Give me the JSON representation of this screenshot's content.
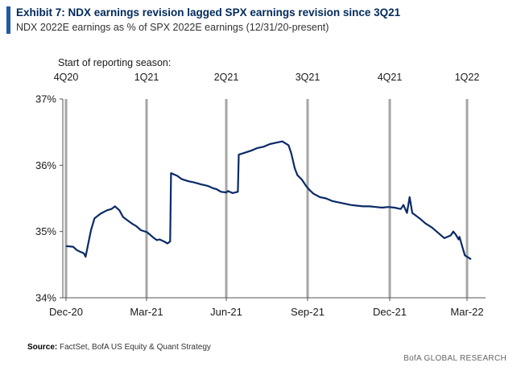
{
  "header": {
    "title": "Exhibit 7: NDX earnings revision lagged SPX earnings revision since 3Q21",
    "subtitle": "NDX 2022E earnings as % of SPX 2022E earnings (12/31/20-present)",
    "accent_color": "#1f5aa6"
  },
  "annotation": {
    "reporting_label": "Start of reporting  season:"
  },
  "footer": {
    "source_label": "Source:",
    "source_text": "FactSet, BofA US Equity & Quant Strategy",
    "brand": "BofA GLOBAL RESEARCH"
  },
  "chart_data": {
    "type": "line",
    "title": "",
    "xlabel": "",
    "ylabel": "",
    "ylim": [
      34,
      37
    ],
    "yticks": [
      "34%",
      "35%",
      "36%",
      "37%"
    ],
    "xticks": [
      "Dec-20",
      "Mar-21",
      "Jun-21",
      "Sep-21",
      "Dec-21",
      "Mar-22"
    ],
    "grid": false,
    "line_color": "#0a2a66",
    "vline_color": "#a6a6a6",
    "reporting_seasons": [
      "4Q20",
      "1Q21",
      "2Q21",
      "3Q21",
      "4Q21",
      "1Q22"
    ],
    "series": [
      {
        "x": [
          "2020-12-31",
          "2021-01-08",
          "2021-01-12",
          "2021-01-15",
          "2021-01-20",
          "2021-01-22",
          "2021-01-28",
          "2021-02-01",
          "2021-02-08",
          "2021-02-15",
          "2021-02-20",
          "2021-02-24",
          "2021-03-01",
          "2021-03-05",
          "2021-03-10",
          "2021-03-15",
          "2021-03-20",
          "2021-03-25",
          "2021-04-01",
          "2021-04-08",
          "2021-04-12",
          "2021-04-15",
          "2021-04-20",
          "2021-04-24",
          "2021-04-27",
          "2021-04-28",
          "2021-05-05",
          "2021-05-10",
          "2021-05-17",
          "2021-05-24",
          "2021-06-01",
          "2021-06-08",
          "2021-06-15",
          "2021-06-18",
          "2021-06-23",
          "2021-06-29",
          "2021-07-01",
          "2021-07-06",
          "2021-07-12",
          "2021-07-13",
          "2021-07-20",
          "2021-07-27",
          "2021-08-03",
          "2021-08-10",
          "2021-08-17",
          "2021-08-24",
          "2021-08-31",
          "2021-09-07",
          "2021-09-10",
          "2021-09-14",
          "2021-09-17",
          "2021-09-22",
          "2021-09-27",
          "2021-10-01",
          "2021-10-05",
          "2021-10-12",
          "2021-10-19",
          "2021-10-26",
          "2021-11-02",
          "2021-11-09",
          "2021-11-16",
          "2021-11-23",
          "2021-11-30",
          "2021-12-07",
          "2021-12-14",
          "2021-12-21",
          "2021-12-28",
          "2022-01-04",
          "2022-01-11",
          "2022-01-14",
          "2022-01-18",
          "2022-01-21",
          "2022-01-24",
          "2022-01-27",
          "2022-02-01",
          "2022-02-08",
          "2022-02-15",
          "2022-02-22",
          "2022-03-01",
          "2022-03-08",
          "2022-03-11",
          "2022-03-14",
          "2022-03-17",
          "2022-03-18",
          "2022-03-21",
          "2022-03-24",
          "2022-03-31"
        ],
        "y": [
          34.78,
          34.77,
          34.72,
          34.7,
          34.67,
          34.62,
          35.02,
          35.2,
          35.27,
          35.32,
          35.34,
          35.38,
          35.32,
          35.22,
          35.17,
          35.12,
          35.08,
          35.02,
          34.99,
          34.91,
          34.87,
          34.88,
          34.85,
          34.82,
          34.85,
          35.88,
          35.84,
          35.79,
          35.76,
          35.74,
          35.71,
          35.69,
          35.65,
          35.64,
          35.6,
          35.59,
          35.61,
          35.58,
          35.6,
          36.16,
          36.19,
          36.22,
          36.26,
          36.28,
          36.32,
          36.34,
          36.36,
          36.3,
          36.18,
          35.95,
          35.85,
          35.78,
          35.68,
          35.62,
          35.57,
          35.52,
          35.5,
          35.46,
          35.44,
          35.42,
          35.4,
          35.39,
          35.38,
          35.38,
          35.37,
          35.36,
          35.37,
          35.36,
          35.34,
          35.4,
          35.28,
          35.52,
          35.28,
          35.25,
          35.2,
          35.12,
          35.06,
          34.98,
          34.9,
          34.94,
          35.0,
          34.95,
          34.88,
          34.92,
          34.78,
          34.64,
          34.58
        ]
      }
    ]
  }
}
